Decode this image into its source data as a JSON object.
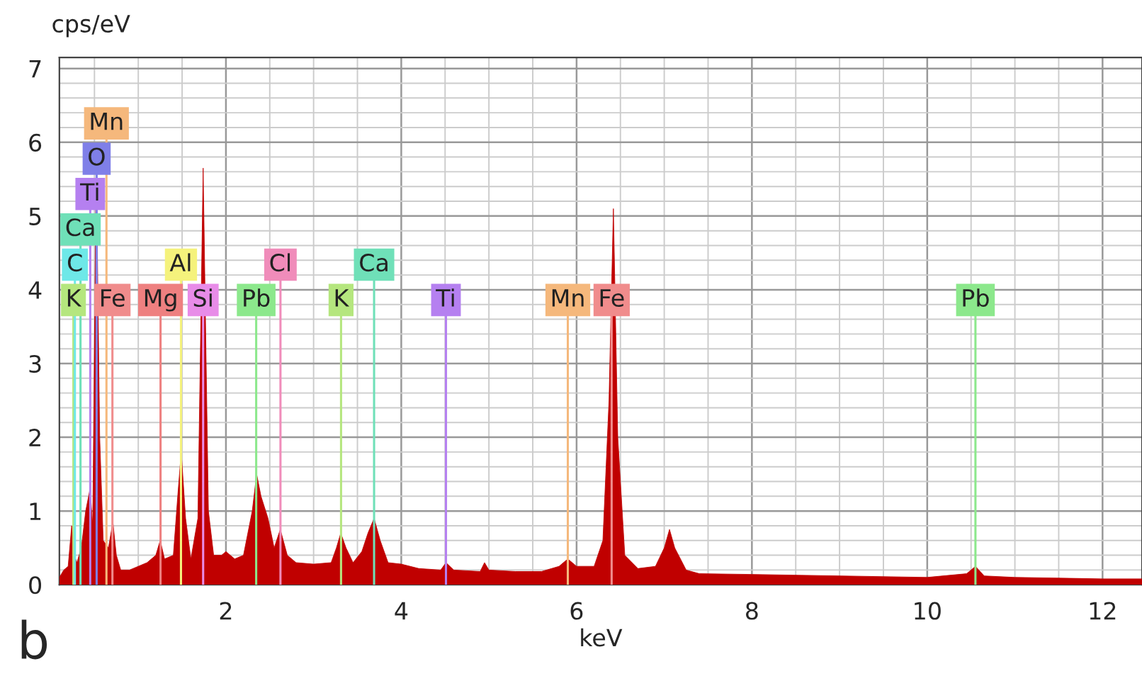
{
  "chart_data": {
    "type": "area",
    "xlabel": "keV",
    "ylabel": "cps/eV",
    "annotations": [
      "b"
    ],
    "x": [
      0.1,
      0.15,
      0.2,
      0.24,
      0.27,
      0.3,
      0.35,
      0.4,
      0.45,
      0.48,
      0.52,
      0.56,
      0.6,
      0.66,
      0.71,
      0.75,
      0.8,
      0.9,
      1.0,
      1.1,
      1.2,
      1.25,
      1.3,
      1.4,
      1.45,
      1.49,
      1.54,
      1.6,
      1.68,
      1.74,
      1.8,
      1.86,
      1.95,
      2.0,
      2.1,
      2.2,
      2.3,
      2.35,
      2.4,
      2.48,
      2.55,
      2.62,
      2.7,
      2.8,
      3.0,
      3.2,
      3.26,
      3.31,
      3.37,
      3.45,
      3.55,
      3.62,
      3.69,
      3.76,
      3.85,
      4.0,
      4.2,
      4.45,
      4.51,
      4.6,
      4.9,
      4.95,
      5.0,
      5.3,
      5.6,
      5.8,
      5.9,
      6.0,
      6.2,
      6.3,
      6.37,
      6.42,
      6.47,
      6.55,
      6.7,
      6.9,
      7.0,
      7.06,
      7.12,
      7.25,
      7.4,
      8.0,
      9.0,
      10.0,
      10.45,
      10.55,
      10.65,
      11.0,
      12.0,
      12.45
    ],
    "series": [
      {
        "color": "#c00000",
        "values": [
          0.1,
          0.2,
          0.25,
          0.8,
          0.4,
          0.3,
          0.5,
          1.0,
          1.3,
          0.8,
          5.8,
          2.0,
          0.6,
          0.5,
          0.85,
          0.4,
          0.2,
          0.2,
          0.25,
          0.3,
          0.4,
          0.6,
          0.35,
          0.4,
          1.2,
          1.8,
          0.9,
          0.35,
          0.9,
          5.65,
          1.0,
          0.4,
          0.4,
          0.45,
          0.35,
          0.4,
          1.0,
          1.5,
          1.2,
          0.9,
          0.5,
          0.75,
          0.4,
          0.3,
          0.28,
          0.3,
          0.5,
          0.7,
          0.5,
          0.3,
          0.45,
          0.7,
          0.9,
          0.6,
          0.3,
          0.28,
          0.22,
          0.2,
          0.3,
          0.2,
          0.18,
          0.3,
          0.2,
          0.18,
          0.18,
          0.25,
          0.35,
          0.25,
          0.25,
          0.6,
          2.5,
          5.1,
          2.0,
          0.4,
          0.22,
          0.25,
          0.5,
          0.75,
          0.5,
          0.2,
          0.15,
          0.14,
          0.12,
          0.1,
          0.15,
          0.25,
          0.12,
          0.1,
          0.08,
          0.08
        ]
      }
    ],
    "ref_lines": [
      {
        "axis": "x",
        "value": 0.26,
        "label": "K",
        "color": "#b5e67e"
      },
      {
        "axis": "x",
        "value": 0.277,
        "label": "C",
        "color": "#6ee8e8"
      },
      {
        "axis": "x",
        "value": 0.341,
        "label": "Ca",
        "color": "#6fe0b8"
      },
      {
        "axis": "x",
        "value": 0.452,
        "label": "Ti",
        "color": "#b580f0"
      },
      {
        "axis": "x",
        "value": 0.525,
        "label": "O",
        "color": "#7f7fe8"
      },
      {
        "axis": "x",
        "value": 0.637,
        "label": "Mn",
        "color": "#f5b87c"
      },
      {
        "axis": "x",
        "value": 0.705,
        "label": "Fe",
        "color": "#f08c8c"
      },
      {
        "axis": "x",
        "value": 1.254,
        "label": "Mg",
        "color": "#ee8080"
      },
      {
        "axis": "x",
        "value": 1.487,
        "label": "Al",
        "color": "#f5f27c"
      },
      {
        "axis": "x",
        "value": 1.74,
        "label": "Si",
        "color": "#e88ce8"
      },
      {
        "axis": "x",
        "value": 2.345,
        "label": "Pb",
        "color": "#8ce88c"
      },
      {
        "axis": "x",
        "value": 2.622,
        "label": "Cl",
        "color": "#f08cba"
      },
      {
        "axis": "x",
        "value": 3.313,
        "label": "K",
        "color": "#b5e67e"
      },
      {
        "axis": "x",
        "value": 3.69,
        "label": "Ca",
        "color": "#6fe0b8"
      },
      {
        "axis": "x",
        "value": 4.51,
        "label": "Ti",
        "color": "#b580f0"
      },
      {
        "axis": "x",
        "value": 5.9,
        "label": "Mn",
        "color": "#f5b87c"
      },
      {
        "axis": "x",
        "value": 6.4,
        "label": "Fe",
        "color": "#f08c8c"
      },
      {
        "axis": "x",
        "value": 10.55,
        "label": "Pb",
        "color": "#8ce88c"
      }
    ],
    "xlim": [
      0.1,
      12.45
    ],
    "ylim": [
      0,
      7.15
    ],
    "xticks": [
      2,
      4,
      6,
      8,
      10,
      12
    ],
    "yticks": [
      0,
      1,
      2,
      3,
      4,
      5,
      6,
      7
    ],
    "grid": true
  }
}
